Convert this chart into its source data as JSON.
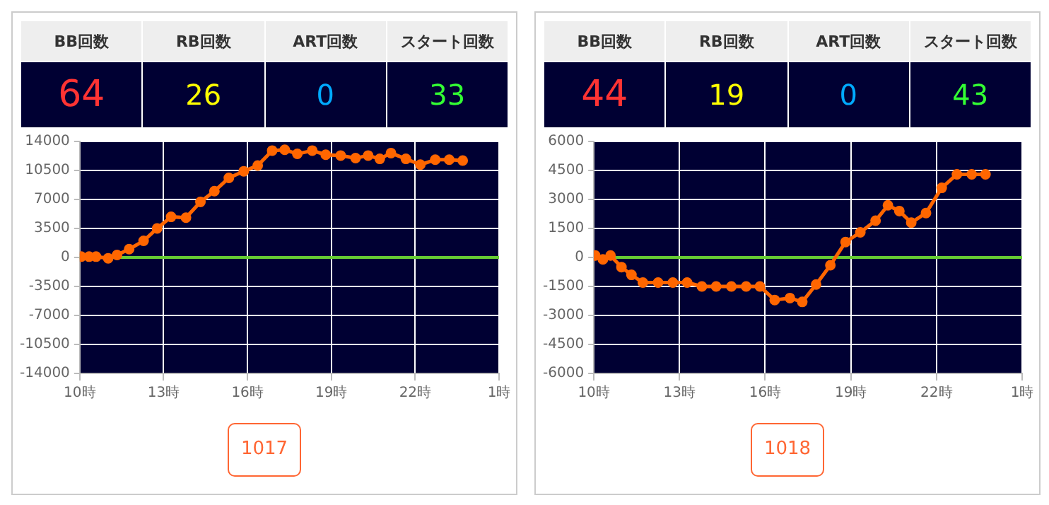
{
  "chart_data": [
    {
      "type": "line",
      "annotations": [
        "BB回数",
        "RB回数",
        "ART回数",
        "スタート回数",
        "64",
        "26",
        "0",
        "33",
        "1017"
      ],
      "xlim": [
        "--01-01T10:00",
        "--01-02T01:00"
      ],
      "xticks": [
        {
          "value": "--01-01T10:00",
          "label": "10時"
        },
        {
          "value": "--01-01T13:00",
          "label": "13時"
        },
        {
          "value": "--01-01T16:00",
          "label": "16時"
        },
        {
          "value": "--01-01T19:00",
          "label": "19時"
        },
        {
          "value": "--01-01T22:00",
          "label": "22時"
        },
        {
          "value": "--01-02T01:00",
          "label": "1時"
        }
      ],
      "ylim": [
        -14000,
        14000
      ],
      "yticks": [
        -14000,
        -10500,
        -7000,
        -3500,
        0,
        3500,
        7000,
        10500,
        14000
      ],
      "grid": true,
      "marker": "circle",
      "line_style": "solid",
      "ref_lines": [
        {
          "axis": "y",
          "value": 0,
          "color": "#66cc33"
        }
      ],
      "series": [
        {
          "color": "#ff6600",
          "x": [
            "--01-01T10:03",
            "--01-01T10:20",
            "--01-01T10:35",
            "--01-01T11:01",
            "--01-01T11:20",
            "--01-01T11:46",
            "--01-01T12:17",
            "--01-01T12:46",
            "--01-01T13:16",
            "--01-01T13:48",
            "--01-01T14:19",
            "--01-01T14:49",
            "--01-01T15:20",
            "--01-01T15:52",
            "--01-01T16:22",
            "--01-01T16:53",
            "--01-01T17:20",
            "--01-01T17:47",
            "--01-01T18:19",
            "--01-01T18:48",
            "--01-01T19:20",
            "--01-01T19:52",
            "--01-01T20:19",
            "--01-01T20:44",
            "--01-01T21:08",
            "--01-01T21:40",
            "--01-01T22:11",
            "--01-01T22:43",
            "--01-01T23:13",
            "--01-01T23:42"
          ],
          "values": [
            100,
            100,
            100,
            -100,
            300,
            1000,
            2000,
            3500,
            4900,
            4800,
            6700,
            8000,
            9600,
            10400,
            11100,
            12900,
            13000,
            12500,
            12900,
            12400,
            12300,
            12000,
            12300,
            11900,
            12600,
            11900,
            11200,
            11800,
            11800,
            11700
          ]
        }
      ]
    },
    {
      "type": "line",
      "annotations": [
        "BB回数",
        "RB回数",
        "ART回数",
        "スタート回数",
        "44",
        "19",
        "0",
        "43",
        "1018"
      ],
      "xlim": [
        "--01-01T10:00",
        "--01-02T01:00"
      ],
      "xticks": [
        {
          "value": "--01-01T10:00",
          "label": "10時"
        },
        {
          "value": "--01-01T13:00",
          "label": "13時"
        },
        {
          "value": "--01-01T16:00",
          "label": "16時"
        },
        {
          "value": "--01-01T19:00",
          "label": "19時"
        },
        {
          "value": "--01-01T22:00",
          "label": "22時"
        },
        {
          "value": "--01-02T01:00",
          "label": "1時"
        }
      ],
      "ylim": [
        -6000,
        6000
      ],
      "yticks": [
        -6000,
        -4500,
        -3000,
        -1500,
        0,
        1500,
        3000,
        4500,
        6000
      ],
      "grid": true,
      "marker": "circle",
      "line_style": "solid",
      "ref_lines": [
        {
          "axis": "y",
          "value": 0,
          "color": "#66cc33"
        }
      ],
      "series": [
        {
          "color": "#ff6600",
          "x": [
            "--01-01T10:03",
            "--01-01T10:19",
            "--01-01T10:35",
            "--01-01T10:58",
            "--01-01T11:19",
            "--01-01T11:43",
            "--01-01T12:15",
            "--01-01T12:46",
            "--01-01T13:16",
            "--01-01T13:47",
            "--01-01T14:17",
            "--01-01T14:49",
            "--01-01T15:20",
            "--01-01T15:49",
            "--01-01T16:20",
            "--01-01T16:52",
            "--01-01T17:18",
            "--01-01T17:47",
            "--01-01T18:17",
            "--01-01T18:49",
            "--01-01T19:20",
            "--01-01T19:52",
            "--01-01T20:18",
            "--01-01T20:42",
            "--01-01T21:07",
            "--01-01T21:38",
            "--01-01T22:11",
            "--01-01T22:43",
            "--01-01T23:14",
            "--01-01T23:43"
          ],
          "values": [
            100,
            -100,
            100,
            -500,
            -900,
            -1300,
            -1300,
            -1300,
            -1300,
            -1500,
            -1500,
            -1500,
            -1500,
            -1500,
            -2200,
            -2100,
            -2300,
            -1400,
            -400,
            800,
            1300,
            1900,
            2700,
            2400,
            1800,
            2300,
            3600,
            4300,
            4300,
            4300
          ]
        }
      ]
    }
  ]
}
